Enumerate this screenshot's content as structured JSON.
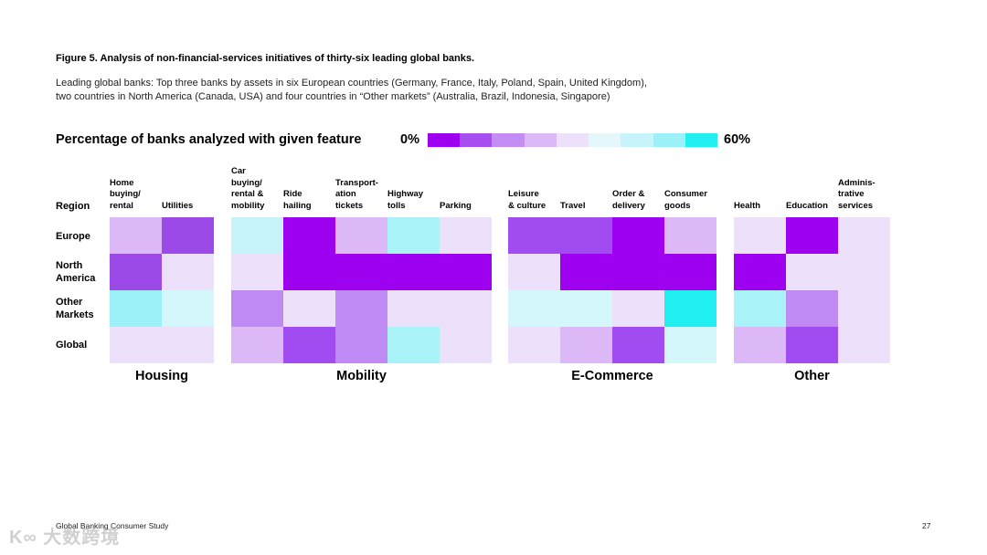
{
  "header": {
    "figure_title": "Figure 5. Analysis of non-financial-services initiatives of thirty-six leading global banks.",
    "subtitle_line1": "Leading global banks: Top three banks by assets in six European countries (Germany, France, Italy, Poland, Spain, United Kingdom),",
    "subtitle_line2": "two countries in North America (Canada, USA) and four countries in “Other markets” (Australia, Brazil, Indonesia, Singapore)"
  },
  "legend": {
    "title": "Percentage of banks analyzed with given feature",
    "min_label": "0%",
    "max_label": "60%",
    "colors": [
      "#9e00f0",
      "#a64ef0",
      "#c48cf5",
      "#dcb8f7",
      "#ede0fa",
      "#e6f7fb",
      "#c7f3fa",
      "#9cf0f7",
      "#20eef0"
    ]
  },
  "chart_data": {
    "type": "heatmap",
    "title": "Percentage of banks analyzed with given feature",
    "row_header": "Region",
    "rows": [
      "Europe",
      "North America",
      "Other Markets",
      "Global"
    ],
    "row_labels_display": [
      [
        "Europe"
      ],
      [
        "North",
        "America"
      ],
      [
        "Other",
        "Markets"
      ],
      [
        "Global"
      ]
    ],
    "groups": [
      {
        "name": "Housing",
        "columns": [
          {
            "label": [
              "Home",
              "buying/",
              "rental"
            ],
            "colors": [
              "#dcb8f7",
              "#9b4ae8",
              "#9cf0f7",
              "#ede0fa"
            ]
          },
          {
            "label": [
              "Utilities"
            ],
            "colors": [
              "#9b4ae8",
              "#ede0fa",
              "#d3f7fb",
              "#ede0fa"
            ]
          }
        ]
      },
      {
        "name": "Mobility",
        "columns": [
          {
            "label": [
              "Car",
              "buying/",
              "rental &",
              "mobility"
            ],
            "colors": [
              "#c7f3fa",
              "#ede0fa",
              "#c08af5",
              "#dcb8f7"
            ]
          },
          {
            "label": [
              "Ride",
              "hailing"
            ],
            "colors": [
              "#9e00f0",
              "#9e00f0",
              "#ede0fa",
              "#a04cf0"
            ]
          },
          {
            "label": [
              "Transport-",
              "ation",
              "tickets"
            ],
            "colors": [
              "#dcb8f7",
              "#9e00f0",
              "#c08af5",
              "#c08af5"
            ]
          },
          {
            "label": [
              "Highway",
              "tolls"
            ],
            "colors": [
              "#a8f2f8",
              "#9e00f0",
              "#ede0fa",
              "#a8f2f8"
            ]
          },
          {
            "label": [
              "Parking"
            ],
            "colors": [
              "#ede0fa",
              "#9e00f0",
              "#ede0fa",
              "#ede0fa"
            ]
          }
        ]
      },
      {
        "name": "E-Commerce",
        "columns": [
          {
            "label": [
              "Leisure",
              "& culture"
            ],
            "colors": [
              "#a04cf0",
              "#ede0fa",
              "#d3f7fb",
              "#ede0fa"
            ]
          },
          {
            "label": [
              "Travel"
            ],
            "colors": [
              "#a04cf0",
              "#9e00f0",
              "#d3f7fb",
              "#dcb8f7"
            ]
          },
          {
            "label": [
              "Order &",
              "delivery"
            ],
            "colors": [
              "#9e00f0",
              "#9e00f0",
              "#ede0fa",
              "#a04cf0"
            ]
          },
          {
            "label": [
              "Consumer",
              "goods"
            ],
            "colors": [
              "#dcb8f7",
              "#9e00f0",
              "#20eef0",
              "#d3f7fb"
            ]
          }
        ]
      },
      {
        "name": "Other",
        "columns": [
          {
            "label": [
              "Health"
            ],
            "colors": [
              "#ede0fa",
              "#9e00f0",
              "#a8f2f8",
              "#dcb8f7"
            ]
          },
          {
            "label": [
              "Education"
            ],
            "colors": [
              "#9e00f0",
              "#ede0fa",
              "#c08af5",
              "#a04cf0"
            ]
          },
          {
            "label": [
              "Adminis-",
              "trative",
              "services"
            ],
            "colors": [
              "#ede0fa",
              "#ede0fa",
              "#ede0fa",
              "#ede0fa"
            ]
          }
        ]
      }
    ]
  },
  "footer": {
    "left": "Global Banking Consumer Study",
    "page_number": "27",
    "watermark": "K∞ 大数跨境"
  }
}
